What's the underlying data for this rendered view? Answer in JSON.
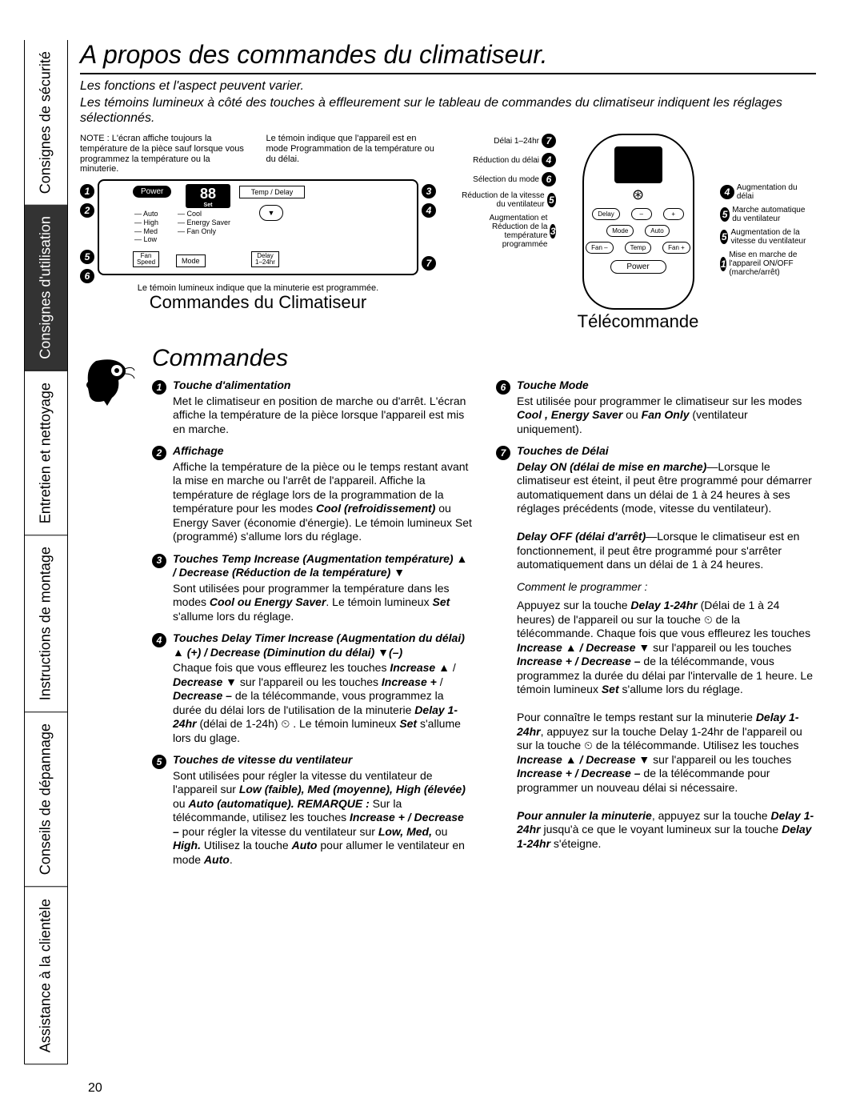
{
  "colors": {
    "badge_bg": "#000000",
    "active_tab_bg": "#333333",
    "text": "#000000",
    "bg": "#ffffff"
  },
  "sidetabs": [
    {
      "label": "Consignes de sécurité",
      "active": false
    },
    {
      "label": "Consignes d'utilisation",
      "active": true
    },
    {
      "label": "Entretien et nettoyage",
      "active": false
    },
    {
      "label": "Instructions de montage",
      "active": false
    },
    {
      "label": "Conseils de dépannage",
      "active": false
    },
    {
      "label": "Assistance à la clientèle",
      "active": false
    }
  ],
  "title": "A propos des commandes du climatiseur.",
  "lead_italic": "Les fonctions et l'aspect peuvent varier.",
  "lead": "Les témoins lumineux à côté des touches à effleurement sur le tableau de commandes du climatiseur indiquent les réglages sélectionnés.",
  "note_left": "NOTE : L'écran affiche toujours la température de la pièce sauf lorsque vous programmez la température ou la minuterie.",
  "note_right": "Le témoin indique que l'appareil est en mode Programmation de la température ou du délai.",
  "panel": {
    "power": "Power",
    "display_val": "88",
    "display_set": "Set",
    "tempdelay": "Temp / Delay",
    "speeds": [
      "Auto",
      "High",
      "Med",
      "Low"
    ],
    "modes": [
      "Cool",
      "Energy Saver",
      "Fan Only"
    ],
    "fanspeed": "Fan\nSpeed",
    "mode": "Mode",
    "delay": "Delay\n1–24hr",
    "caption_foot": "Le témoin lumineux indique que la minuterie est programmée.",
    "subtitle": "Commandes du Climatiseur"
  },
  "remote": {
    "subtitle": "Télécommande",
    "power": "Power",
    "logo_glyph": "⊛",
    "buttons_row1": [
      "Delay",
      "–",
      "+"
    ],
    "buttons_row2": [
      "Mode",
      "Auto"
    ],
    "buttons_row3": [
      "Fan –",
      "Temp",
      "Fan +"
    ],
    "callouts_left": [
      {
        "n": "7",
        "text": "Délai 1–24hr"
      },
      {
        "n": "4",
        "text": "Réduction du délai"
      },
      {
        "n": "6",
        "text": "Sélection du mode"
      },
      {
        "n": "5",
        "text": "Réduction de la vitesse du ventilateur"
      },
      {
        "n": "3",
        "text": "Augmentation et Réduction de la température programmée"
      }
    ],
    "callouts_right": [
      {
        "n": "4",
        "text": "Augmentation du délai"
      },
      {
        "n": "5",
        "text": "Marche automatique du ventilateur"
      },
      {
        "n": "5",
        "text": "Augmentation de la vitesse du ventilateur"
      },
      {
        "n": "1",
        "text": "Mise en marche de l'appareil ON/OFF (marche/arrêt)"
      }
    ]
  },
  "commands_heading": "Commandes",
  "left_items": [
    {
      "n": "1",
      "hd": "Touche d'alimentation",
      "body": "Met le climatiseur en position de marche ou d'arrêt. L'écran affiche la température de la pièce lorsque l'appareil est mis en marche."
    },
    {
      "n": "2",
      "hd": "Affichage",
      "body": "Affiche la température de la pièce ou le temps restant avant la mise en marche ou l'arrêt de l'appareil. Affiche la température de réglage lors de la programmation de la température pour les modes <b><i>Cool (refroidissement)</i></b> ou Energy Saver (économie d'énergie). Le témoin lumineux Set (programmé) s'allume lors du réglage."
    },
    {
      "n": "3",
      "hd": "Touches Temp Increase (Augmentation température) ▲ / Decrease (Réduction de la température) ▼",
      "body": "Sont utilisées pour programmer la température dans les modes <b><i>Cool ou Energy Saver</i></b>. Le témoin lumineux <b><i>Set</i></b> s'allume lors du réglage."
    },
    {
      "n": "4",
      "hd": "Touches Delay Timer Increase (Augmentation du délai) ▲ (+) / Decrease (Diminution du délai) ▼(–)",
      "body": "Chaque fois que vous effleurez les touches <b><i>Increase ▲</i></b> / <b><i>Decrease ▼</i></b> sur l'appareil ou les touches <b><i>Increase +</i></b> / <b><i>Decrease –</i></b> de la télécommande, vous programmez la durée du délai lors de l'utilisation de la minuterie <b><i>Delay 1-24hr</i></b> (délai de 1-24h) ⏲ . Le témoin lumineux <b><i>Set</i></b> s'allume lors du glage."
    },
    {
      "n": "5",
      "hd": "Touches de vitesse du ventilateur",
      "body": "Sont utilisées pour régler la vitesse du ventilateur de l'appareil sur <b><i>Low (faible), Med (moyenne), High (élevée)</i></b> ou <b><i>Auto (automatique). REMARQUE :</i></b> Sur la télécommande, utilisez les touches <b><i>Increase + / Decrease –</i></b> pour régler la vitesse du ventilateur sur <b><i>Low, Med,</i></b> ou <b><i>High.</i></b> Utilisez la touche <b><i>Auto</i></b> pour allumer le ventilateur en mode <b><i>Auto</i></b>."
    }
  ],
  "right_items": [
    {
      "n": "6",
      "hd": "Touche Mode",
      "body": "Est utilisée pour programmer le climatiseur sur les modes <b><i>Cool , Energy Saver</i></b> ou <b><i>Fan Only</i></b> (ventilateur uniquement)."
    },
    {
      "n": "7",
      "hd": "Touches de Délai",
      "body": "<b><i>Delay ON (délai de mise en marche)</i></b>—Lorsque le climatiseur est éteint, il peut être programmé pour démarrer automatiquement dans un délai de 1 à 24 heures à ses réglages précédents (mode, vitesse du ventilateur).<br><br><b><i>Delay OFF (délai d'arrêt)</i></b>—Lorsque le climatiseur est en fonctionnement, il peut être programmé pour s'arrêter automatiquement dans un délai de 1 à 24 heures."
    }
  ],
  "howto_head": "Comment le programmer :",
  "howto_p1": "Appuyez sur la touche <b><i>Delay 1-24hr</i></b> (Délai de 1 à 24 heures) de l'appareil ou sur la touche ⏲ de la télécommande. Chaque fois que vous effleurez les touches <b><i>Increase ▲ / Decrease ▼</i></b> sur l'appareil ou les touches <b><i>Increase + / Decrease –</i></b> de la télécommande, vous programmez la durée du délai par l'intervalle de 1 heure. Le témoin lumineux <b><i>Set</i></b> s'allume lors du réglage.",
  "howto_p2": "Pour connaître le temps restant sur la minuterie <b><i>Delay 1-24hr</i></b>, appuyez sur la touche Delay 1-24hr de l'appareil ou sur la touche ⏲ de la télécommande. Utilisez les touches <b><i>Increase ▲ / Decrease ▼</i></b> sur l'appareil ou les touches <b><i>Increase + / Decrease –</i></b> de la télécommande pour programmer un nouveau délai si nécessaire.",
  "howto_p3": "<b><i>Pour annuler la minuterie</i></b>, appuyez sur la touche <b><i>Delay 1-24hr</i></b> jusqu'à ce que le voyant lumineux sur la touche <b><i>Delay 1-24hr</i></b> s'éteigne.",
  "page_number": "20"
}
